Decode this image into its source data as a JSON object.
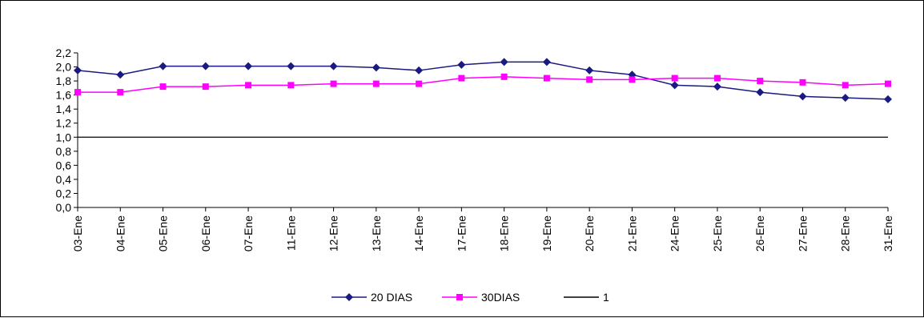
{
  "chart_data": {
    "type": "line",
    "title": "",
    "xlabel": "",
    "ylabel": "",
    "categories": [
      "03-Ene",
      "04-Ene",
      "05-Ene",
      "06-Ene",
      "07-Ene",
      "11-Ene",
      "12-Ene",
      "13-Ene",
      "14-Ene",
      "17-Ene",
      "18-Ene",
      "19-Ene",
      "20-Ene",
      "21-Ene",
      "24-Ene",
      "25-Ene",
      "26-Ene",
      "27-Ene",
      "28-Ene",
      "31-Ene"
    ],
    "ylim": [
      0,
      2.2
    ],
    "yticks": [
      "0,0",
      "0,2",
      "0,4",
      "0,6",
      "0,8",
      "1,0",
      "1,2",
      "1,4",
      "1,6",
      "1,8",
      "2,0",
      "2,2"
    ],
    "grid": false,
    "legend_position": "bottom",
    "series": [
      {
        "name": "20 DIAS",
        "color": "#1a1a80",
        "marker": "diamond",
        "values": [
          1.95,
          1.89,
          2.01,
          2.01,
          2.01,
          2.01,
          2.01,
          1.99,
          1.95,
          2.03,
          2.07,
          2.07,
          1.95,
          1.89,
          1.74,
          1.72,
          1.64,
          1.58,
          1.56,
          1.54
        ]
      },
      {
        "name": "30DIAS",
        "color": "#ff00ff",
        "marker": "square",
        "values": [
          1.64,
          1.64,
          1.72,
          1.72,
          1.74,
          1.74,
          1.76,
          1.76,
          1.76,
          1.84,
          1.86,
          1.84,
          1.82,
          1.82,
          1.84,
          1.84,
          1.8,
          1.78,
          1.74,
          1.76
        ]
      },
      {
        "name": "1",
        "color": "#000000",
        "marker": "none",
        "values": [
          1,
          1,
          1,
          1,
          1,
          1,
          1,
          1,
          1,
          1,
          1,
          1,
          1,
          1,
          1,
          1,
          1,
          1,
          1,
          1
        ]
      }
    ]
  }
}
